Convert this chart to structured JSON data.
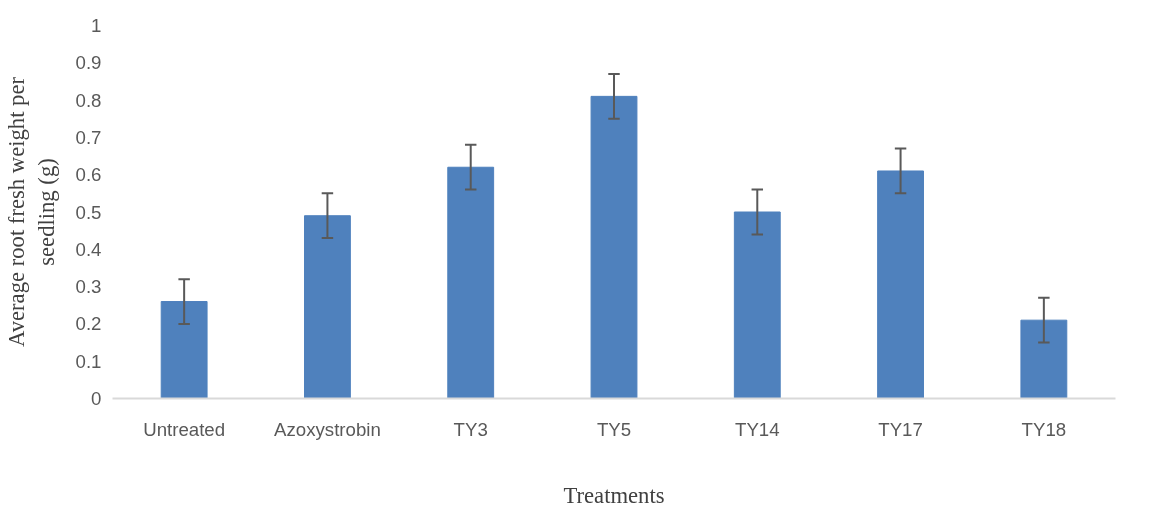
{
  "chart_data": {
    "type": "bar",
    "xlabel": "Treatments",
    "ylabel": "Average root fresh weight per\nseedling (g)",
    "categories": [
      "Untreated",
      "Azoxystrobin",
      "TY3",
      "TY5",
      "TY14",
      "TY17",
      "TY18"
    ],
    "values": [
      0.26,
      0.49,
      0.62,
      0.81,
      0.5,
      0.61,
      0.21
    ],
    "errors": [
      0.06,
      0.06,
      0.06,
      0.06,
      0.06,
      0.06,
      0.06
    ],
    "color": "#4f81bd",
    "ylim": [
      0,
      1
    ],
    "yticks": [
      0,
      0.1,
      0.2,
      0.3,
      0.4,
      0.5,
      0.6,
      0.7,
      0.8,
      0.9,
      1
    ],
    "grid": false
  }
}
